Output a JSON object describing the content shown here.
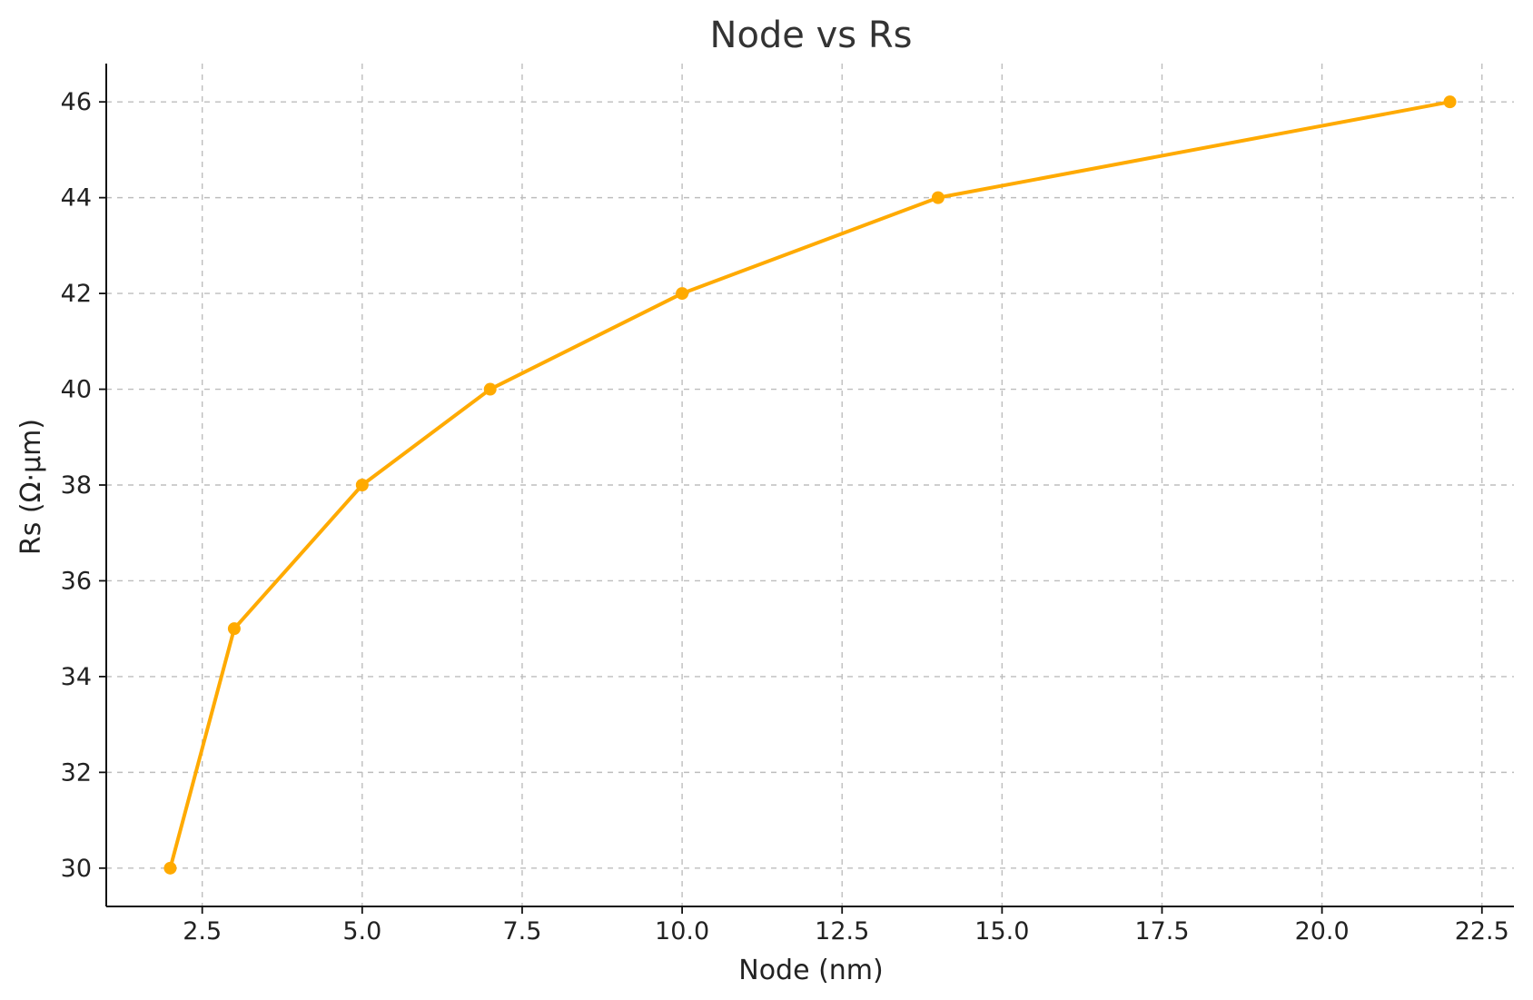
{
  "chart_data": {
    "type": "line",
    "title": "Node vs Rs",
    "xlabel": "Node (nm)",
    "ylabel": "Rs (Ω·µm)",
    "xlim": [
      1.0,
      23.0
    ],
    "ylim": [
      29.2,
      46.8
    ],
    "xticks": [
      2.5,
      5.0,
      7.5,
      10.0,
      12.5,
      15.0,
      17.5,
      20.0,
      22.5
    ],
    "xtick_labels": [
      "2.5",
      "5.0",
      "7.5",
      "10.0",
      "12.5",
      "15.0",
      "17.5",
      "20.0",
      "22.5"
    ],
    "yticks": [
      30,
      32,
      34,
      36,
      38,
      40,
      42,
      44,
      46
    ],
    "ytick_labels": [
      "30",
      "32",
      "34",
      "36",
      "38",
      "40",
      "42",
      "44",
      "46"
    ],
    "grid": true,
    "series": [
      {
        "color": "#FFAA00",
        "x": [
          2,
          3,
          5,
          7,
          10,
          14,
          22
        ],
        "y": [
          30,
          35,
          38,
          40,
          42,
          44,
          46
        ]
      }
    ]
  }
}
